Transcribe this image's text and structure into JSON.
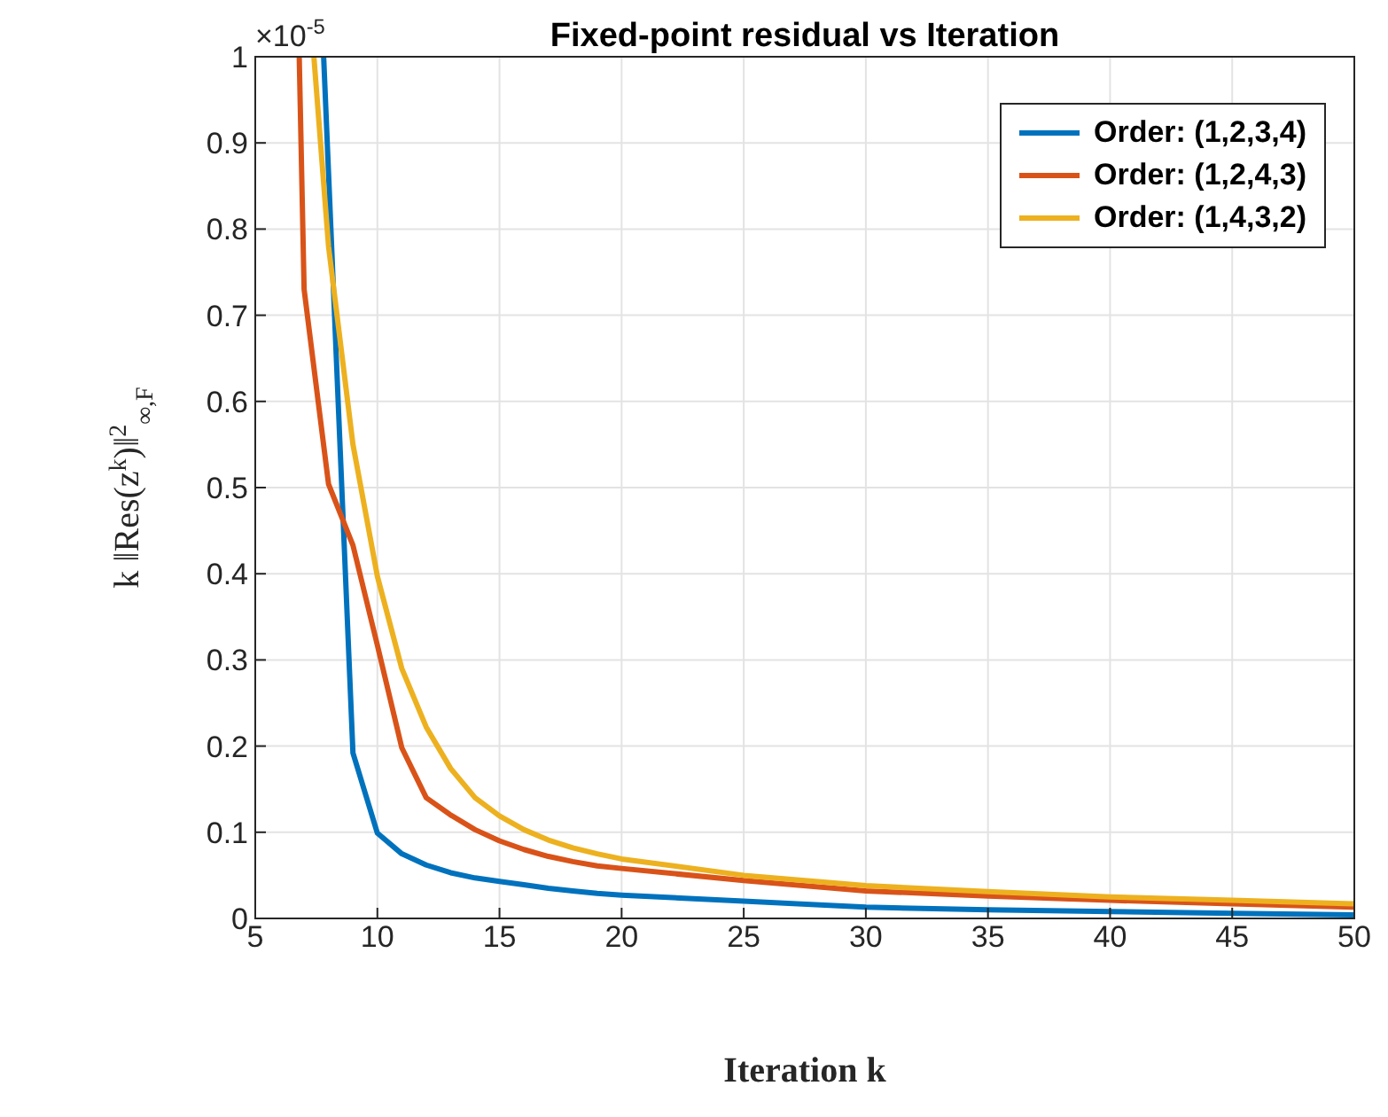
{
  "chart_data": {
    "type": "line",
    "title": "Fixed-point residual vs Iteration",
    "xlabel": "Iteration k",
    "ylabel": "k ‖Res(z$^{k}$)‖$^{2}$$_{∞,F}$",
    "annotations": [
      "×10$^{-5}$"
    ],
    "xlim": [
      5,
      50
    ],
    "xticks": [
      5,
      10,
      15,
      20,
      25,
      30,
      35,
      40,
      45,
      50
    ],
    "ylim": [
      0,
      1
    ],
    "yticks": [
      0,
      0.1,
      0.2,
      0.3,
      0.4,
      0.5,
      0.6,
      0.7,
      0.8,
      0.9,
      1
    ],
    "grid": true,
    "legend": "top right",
    "marker": "none",
    "line_style": "solid",
    "series": [
      {
        "name": "Order: (1,2,3,4)",
        "color": "#0072bd",
        "x": [
          7.8,
          9,
          10,
          11,
          12,
          13,
          14,
          15,
          16,
          17,
          18,
          19,
          20,
          25,
          30,
          35,
          40,
          45,
          50
        ],
        "values": [
          1,
          0.192,
          0.099,
          0.075,
          0.062,
          0.053,
          0.047,
          0.043,
          0.039,
          0.035,
          0.032,
          0.029,
          0.027,
          0.02,
          0.013,
          0.01,
          0.008,
          0.006,
          0.004
        ]
      },
      {
        "name": "Order: (1,2,4,3)",
        "color": "#d95319",
        "x": [
          6.8,
          7,
          8,
          9,
          10,
          11,
          12,
          13,
          14,
          15,
          16,
          17,
          18,
          19,
          20,
          25,
          30,
          35,
          40,
          45,
          50
        ],
        "values": [
          1,
          0.73,
          0.504,
          0.433,
          0.317,
          0.198,
          0.14,
          0.12,
          0.103,
          0.09,
          0.08,
          0.072,
          0.066,
          0.061,
          0.058,
          0.044,
          0.032,
          0.026,
          0.021,
          0.017,
          0.013
        ]
      },
      {
        "name": "Order: (1,4,3,2)",
        "color": "#edb120",
        "x": [
          7.4,
          8,
          9,
          10,
          11,
          12,
          13,
          14,
          15,
          16,
          17,
          18,
          19,
          20,
          25,
          30,
          35,
          40,
          45,
          50
        ],
        "values": [
          1,
          0.78,
          0.55,
          0.397,
          0.29,
          0.222,
          0.174,
          0.14,
          0.119,
          0.103,
          0.091,
          0.082,
          0.075,
          0.069,
          0.05,
          0.038,
          0.031,
          0.025,
          0.021,
          0.017
        ]
      }
    ]
  }
}
